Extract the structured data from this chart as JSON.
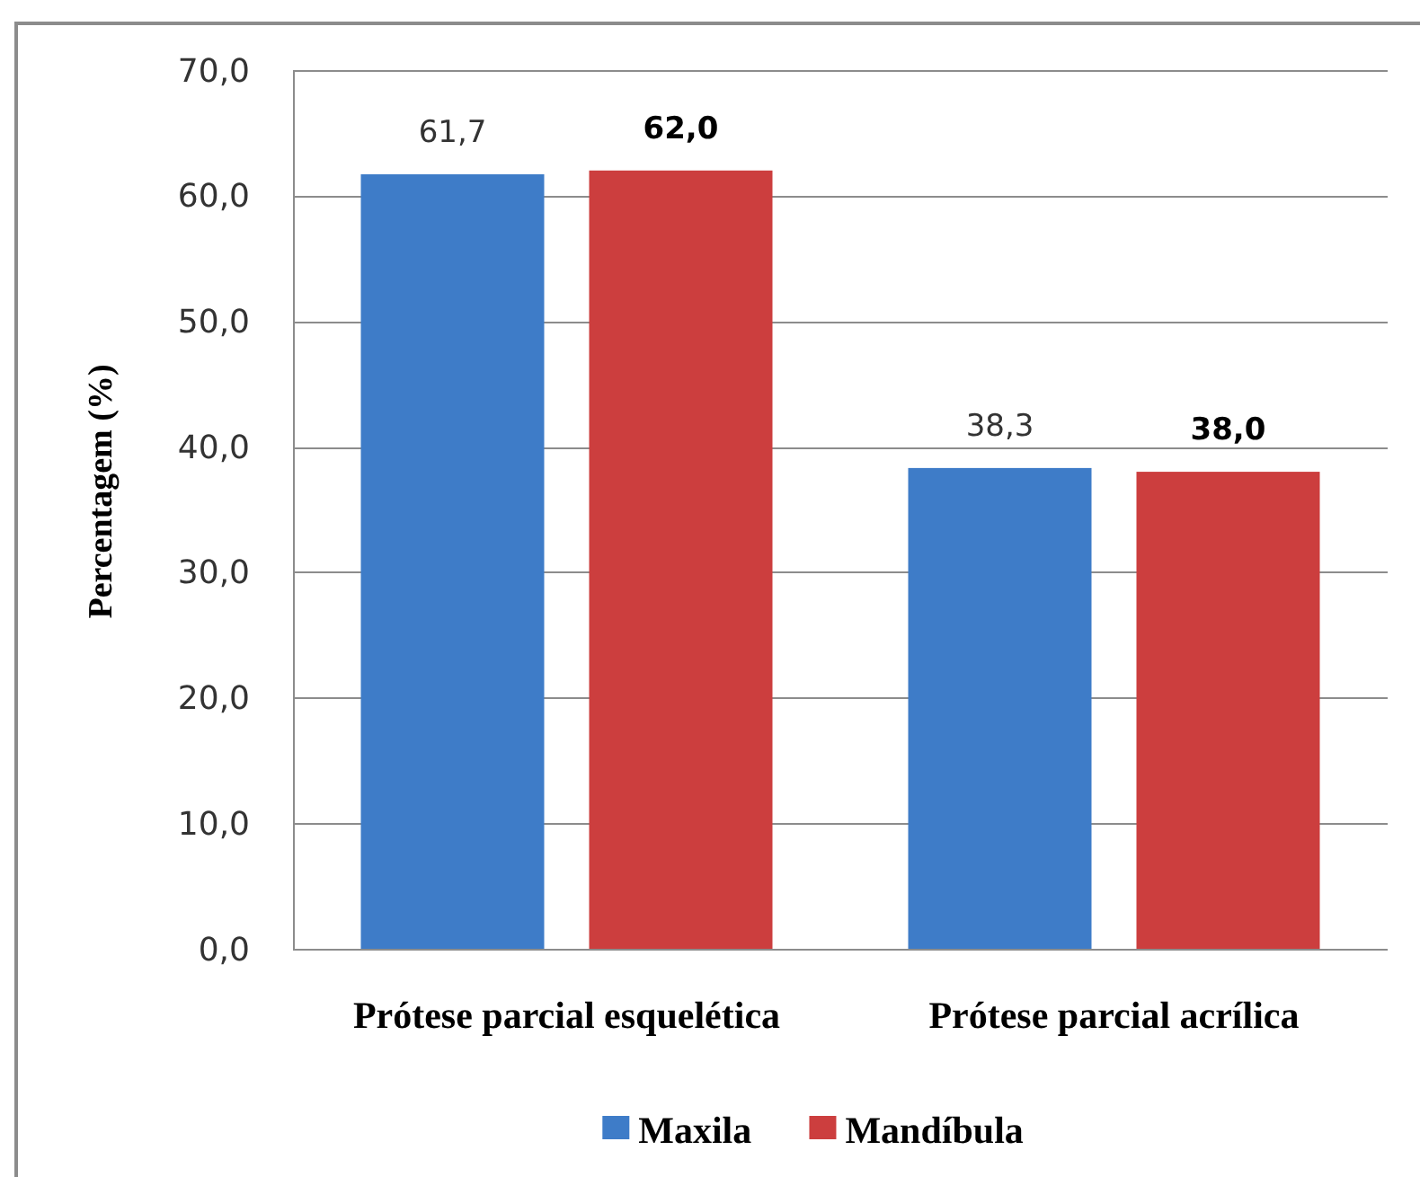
{
  "chart_data": {
    "type": "bar",
    "ylabel": "Percentagem (%)",
    "categories": [
      "Prótese parcial esquelética",
      "Prótese parcial acrílica"
    ],
    "series": [
      {
        "name": "Maxila",
        "color": "#3e7cc8",
        "values": [
          61.7,
          38.3
        ],
        "value_labels": [
          "61,7",
          "38,3"
        ]
      },
      {
        "name": "Mandíbula",
        "color": "#cc3e3e",
        "values": [
          62.0,
          38.0
        ],
        "value_labels": [
          "62,0",
          "38,0"
        ]
      }
    ],
    "ylim": [
      0,
      70
    ],
    "yticks": [
      {
        "value": 0,
        "label": "0,0"
      },
      {
        "value": 10,
        "label": "10,0"
      },
      {
        "value": 20,
        "label": "20,0"
      },
      {
        "value": 30,
        "label": "30,0"
      },
      {
        "value": 40,
        "label": "40,0"
      },
      {
        "value": 50,
        "label": "50,0"
      },
      {
        "value": 60,
        "label": "60,0"
      },
      {
        "value": 70,
        "label": "70,0"
      }
    ],
    "grid": "y",
    "legend": "bottom"
  }
}
